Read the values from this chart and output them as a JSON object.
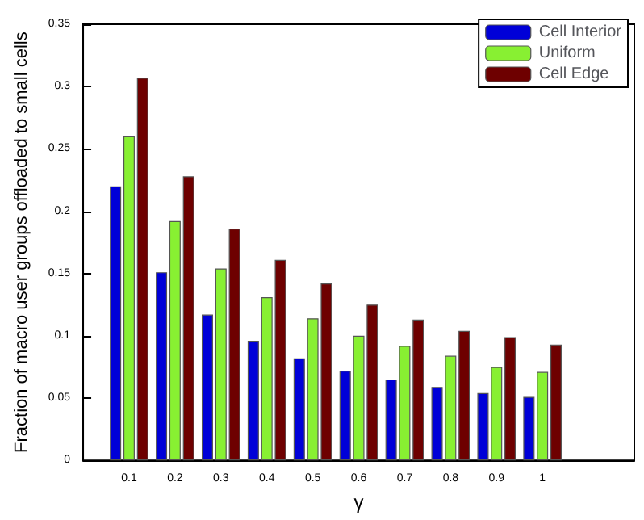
{
  "chart_data": {
    "type": "bar",
    "xlabel": "γ",
    "ylabel": "Fraction of macro user groups offloaded to small cells",
    "x": [
      0.1,
      0.2,
      0.3,
      0.4,
      0.5,
      0.6,
      0.7,
      0.8,
      0.9,
      1
    ],
    "xlim": [
      0,
      1.2
    ],
    "xticks": [
      0.1,
      0.2,
      0.3,
      0.4,
      0.5,
      0.6,
      0.7,
      0.8,
      0.9,
      1
    ],
    "ylim": [
      0,
      0.35
    ],
    "yticks": [
      0,
      0.05,
      0.1,
      0.15,
      0.2,
      0.25,
      0.3,
      0.35
    ],
    "legend": "top right",
    "grid": false,
    "series": [
      {
        "name": "Cell Interior",
        "color": "#0000d8",
        "values": [
          0.22,
          0.151,
          0.117,
          0.096,
          0.082,
          0.072,
          0.065,
          0.059,
          0.054,
          0.051
        ]
      },
      {
        "name": "Uniform",
        "color": "#88f032",
        "values": [
          0.26,
          0.192,
          0.154,
          0.131,
          0.114,
          0.1,
          0.092,
          0.084,
          0.075,
          0.071
        ]
      },
      {
        "name": "Cell Edge",
        "color": "#6e0000",
        "values": [
          0.307,
          0.228,
          0.186,
          0.161,
          0.142,
          0.125,
          0.113,
          0.104,
          0.099,
          0.093
        ]
      }
    ]
  }
}
